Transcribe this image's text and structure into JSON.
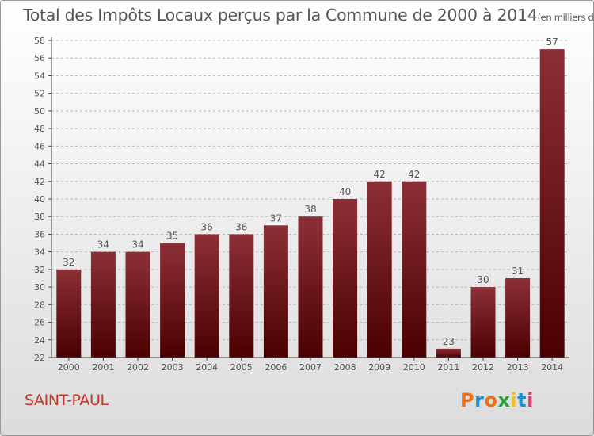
{
  "title": "Total des Impôts Locaux perçus par la Commune de 2000 à 2014",
  "unit": "(en milliers d'€)",
  "commune": "SAINT-PAUL",
  "brand": {
    "text": "Proxiti",
    "letter_colors": [
      "#e8711f",
      "#1f8fd6",
      "#e8711f",
      "#2c9e3e",
      "#f2c21c",
      "#1f8fd6",
      "#e23b7a"
    ]
  },
  "colors": {
    "bar_top": "#8c2f37",
    "bar_bottom": "#4a0000",
    "axis": "#444444",
    "grid": "#b8b8b8",
    "text": "#555555",
    "commune": "#c0342b"
  },
  "chart_data": {
    "type": "bar",
    "categories": [
      "2000",
      "2001",
      "2002",
      "2003",
      "2004",
      "2005",
      "2006",
      "2007",
      "2008",
      "2009",
      "2010",
      "2011",
      "2012",
      "2013",
      "2014"
    ],
    "values": [
      32,
      34,
      34,
      35,
      36,
      36,
      37,
      38,
      40,
      42,
      42,
      23,
      30,
      31,
      57
    ],
    "ylim": [
      22,
      58
    ],
    "ytick_step": 2,
    "grid": "horizontal-dashed",
    "title": "Total des Impôts Locaux perçus par la Commune de 2000 à 2014",
    "xlabel": "",
    "ylabel": ""
  }
}
